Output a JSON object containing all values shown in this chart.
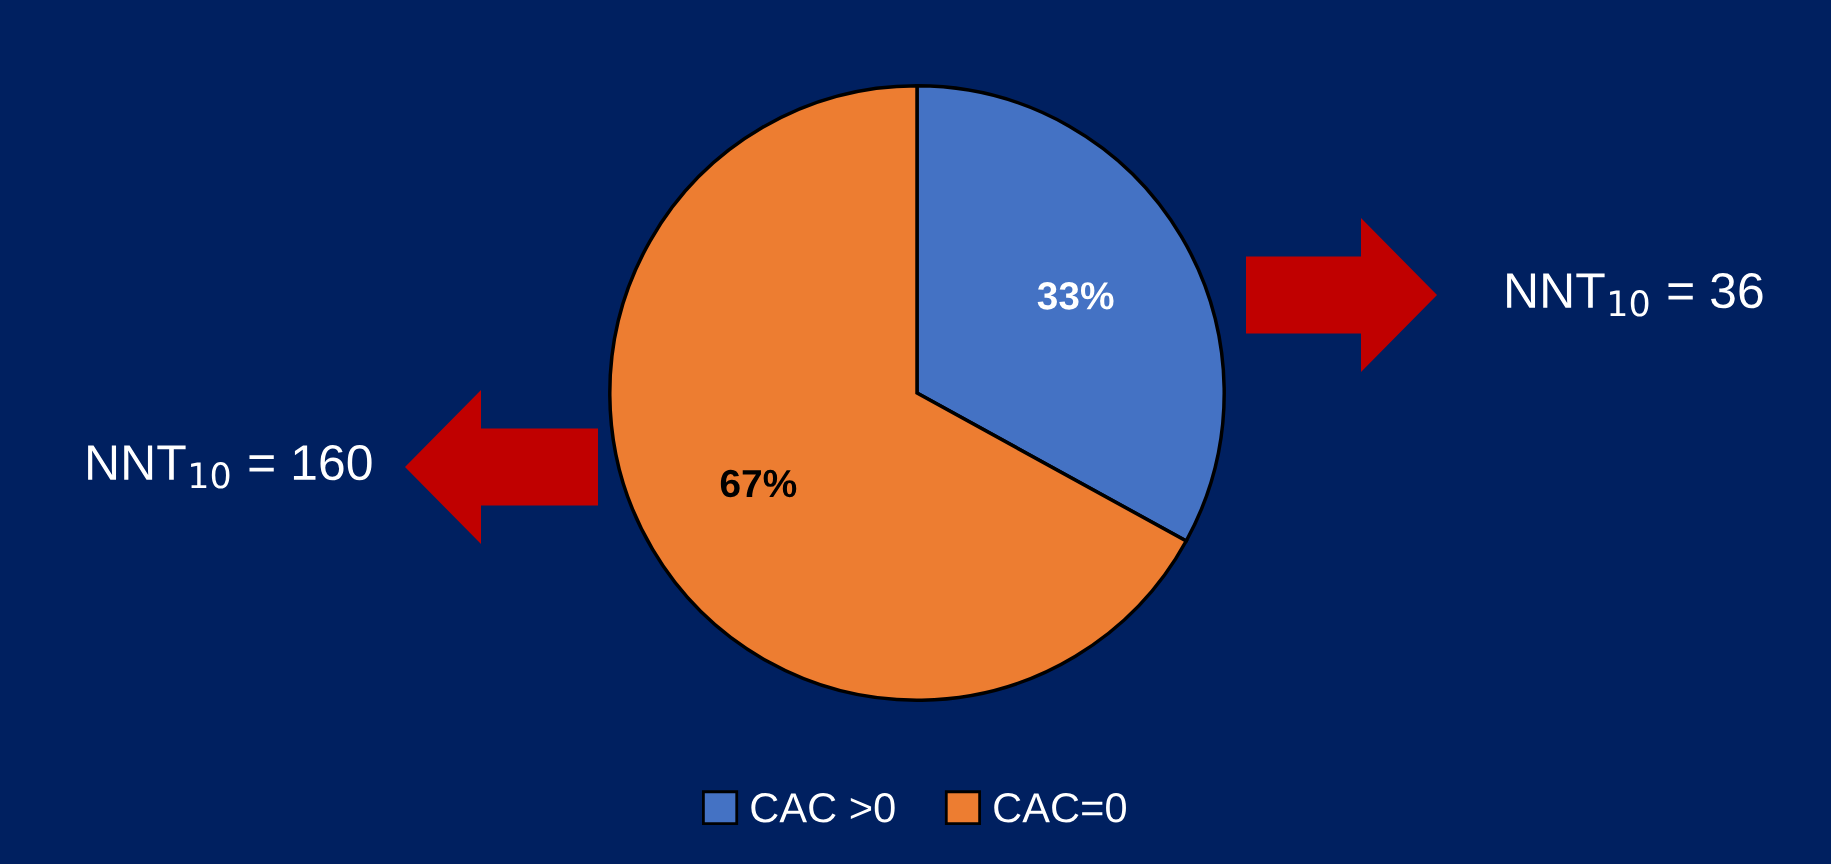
{
  "chart_data": {
    "type": "pie",
    "categories": [
      "CAC >0",
      "CAC=0"
    ],
    "values": [
      33,
      67
    ],
    "colors": [
      "#4472c4",
      "#ed7d31"
    ],
    "value_labels": [
      "33%",
      "67%"
    ],
    "legend": "bottom",
    "annotations": [
      "NNT$_{10}$ = 36",
      "NNT$_{10}$ = 160"
    ]
  }
}
